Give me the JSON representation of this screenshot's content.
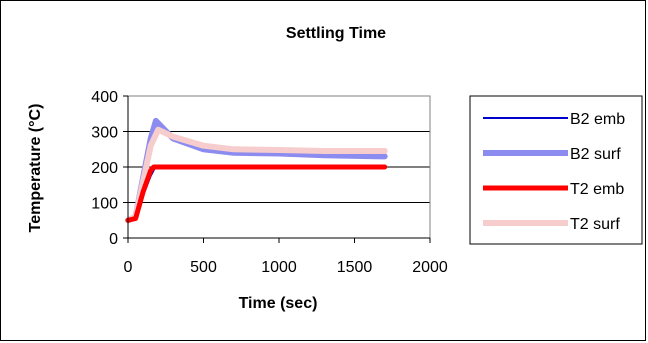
{
  "chart_data": {
    "type": "line",
    "title": "Settling Time",
    "xlabel": "Time (sec)",
    "ylabel": "Temperature (°C)",
    "xlim": [
      0,
      2000
    ],
    "ylim": [
      0,
      400
    ],
    "xticks": [
      0,
      500,
      1000,
      1500,
      2000
    ],
    "yticks": [
      0,
      100,
      200,
      300,
      400
    ],
    "grid": "horizontal",
    "legend_position": "right",
    "series": [
      {
        "name": "B2 emb",
        "color": "#0000cc",
        "points": [
          [
            0,
            50
          ],
          [
            50,
            55
          ],
          [
            100,
            120
          ],
          [
            150,
            175
          ],
          [
            175,
            195
          ],
          [
            200,
            200
          ],
          [
            1700,
            200
          ]
        ]
      },
      {
        "name": "B2 surf",
        "color": "#8c8cf0",
        "points": [
          [
            0,
            50
          ],
          [
            50,
            60
          ],
          [
            100,
            170
          ],
          [
            150,
            280
          ],
          [
            185,
            330
          ],
          [
            230,
            310
          ],
          [
            300,
            280
          ],
          [
            400,
            265
          ],
          [
            500,
            250
          ],
          [
            700,
            240
          ],
          [
            1000,
            238
          ],
          [
            1300,
            233
          ],
          [
            1700,
            230
          ]
        ]
      },
      {
        "name": "T2 emb",
        "color": "#ff0000",
        "points": [
          [
            0,
            50
          ],
          [
            50,
            55
          ],
          [
            100,
            130
          ],
          [
            150,
            190
          ],
          [
            170,
            200
          ],
          [
            1700,
            200
          ]
        ]
      },
      {
        "name": "T2 surf",
        "color": "#f6cccc",
        "points": [
          [
            0,
            50
          ],
          [
            50,
            60
          ],
          [
            100,
            160
          ],
          [
            150,
            260
          ],
          [
            200,
            305
          ],
          [
            300,
            285
          ],
          [
            500,
            260
          ],
          [
            700,
            250
          ],
          [
            1000,
            248
          ],
          [
            1300,
            245
          ],
          [
            1700,
            245
          ]
        ]
      }
    ]
  }
}
